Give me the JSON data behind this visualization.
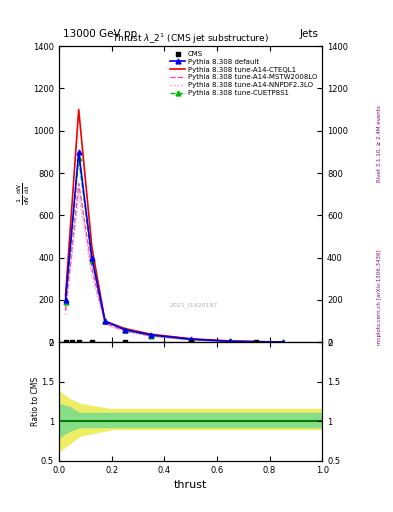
{
  "title_top": "13000 GeV pp",
  "title_right": "Jets",
  "plot_title": "Thrust $\\lambda$_2$^1$ (CMS jet substructure)",
  "xlabel": "thrust",
  "ylabel_main": "$\\frac{1}{\\mathrm{d}N}\\,\\frac{\\mathrm{d}N}{\\mathrm{d}\\lambda}$",
  "ylabel_ratio": "Ratio to CMS",
  "watermark": "mcplots.cern.ch [arXiv:1306.3436]",
  "rivet_label": "Rivet 3.1.10, ≥ 2.4M events",
  "cms_id": "2021_I1920187",
  "pythia_x": [
    0.025,
    0.075,
    0.125,
    0.175,
    0.25,
    0.35,
    0.5,
    0.65,
    0.85
  ],
  "pythia_default_y": [
    200,
    900,
    400,
    100,
    60,
    35,
    15,
    5,
    1
  ],
  "pythia_cteql1_y": [
    220,
    1100,
    450,
    100,
    65,
    38,
    17,
    6,
    1.2
  ],
  "pythia_mstw_y": [
    150,
    750,
    350,
    90,
    55,
    30,
    12,
    4,
    0.8
  ],
  "pythia_nnpdf_y": [
    130,
    700,
    320,
    85,
    50,
    28,
    11,
    3.5,
    0.7
  ],
  "pythia_cuetp_y": [
    190,
    870,
    390,
    100,
    58,
    32,
    13,
    4.5,
    1.0
  ],
  "cms_x": [
    0.025,
    0.05,
    0.075,
    0.125,
    0.25,
    0.5,
    0.75
  ],
  "cms_y": [
    0,
    0,
    0,
    0,
    0,
    0,
    0
  ],
  "ylim_main": [
    0,
    1400
  ],
  "ylim_ratio": [
    0.5,
    2.0
  ],
  "yticks_main": [
    0,
    200,
    400,
    600,
    800,
    1000,
    1200,
    1400
  ],
  "ratio_yticks": [
    0.5,
    1.0,
    1.5,
    2.0
  ],
  "ratio_yticklabels": [
    "0.5",
    "1",
    "1.5",
    "2"
  ],
  "color_default": "#0000ee",
  "color_cteql1": "#ee0000",
  "color_mstw": "#ff44aa",
  "color_nnpdf": "#ff88cc",
  "color_cuetp": "#00bb00",
  "color_cms": "#000000",
  "bg_color": "#ffffff",
  "ratio_band_green": "#88dd88",
  "ratio_band_yellow": "#eeee66"
}
